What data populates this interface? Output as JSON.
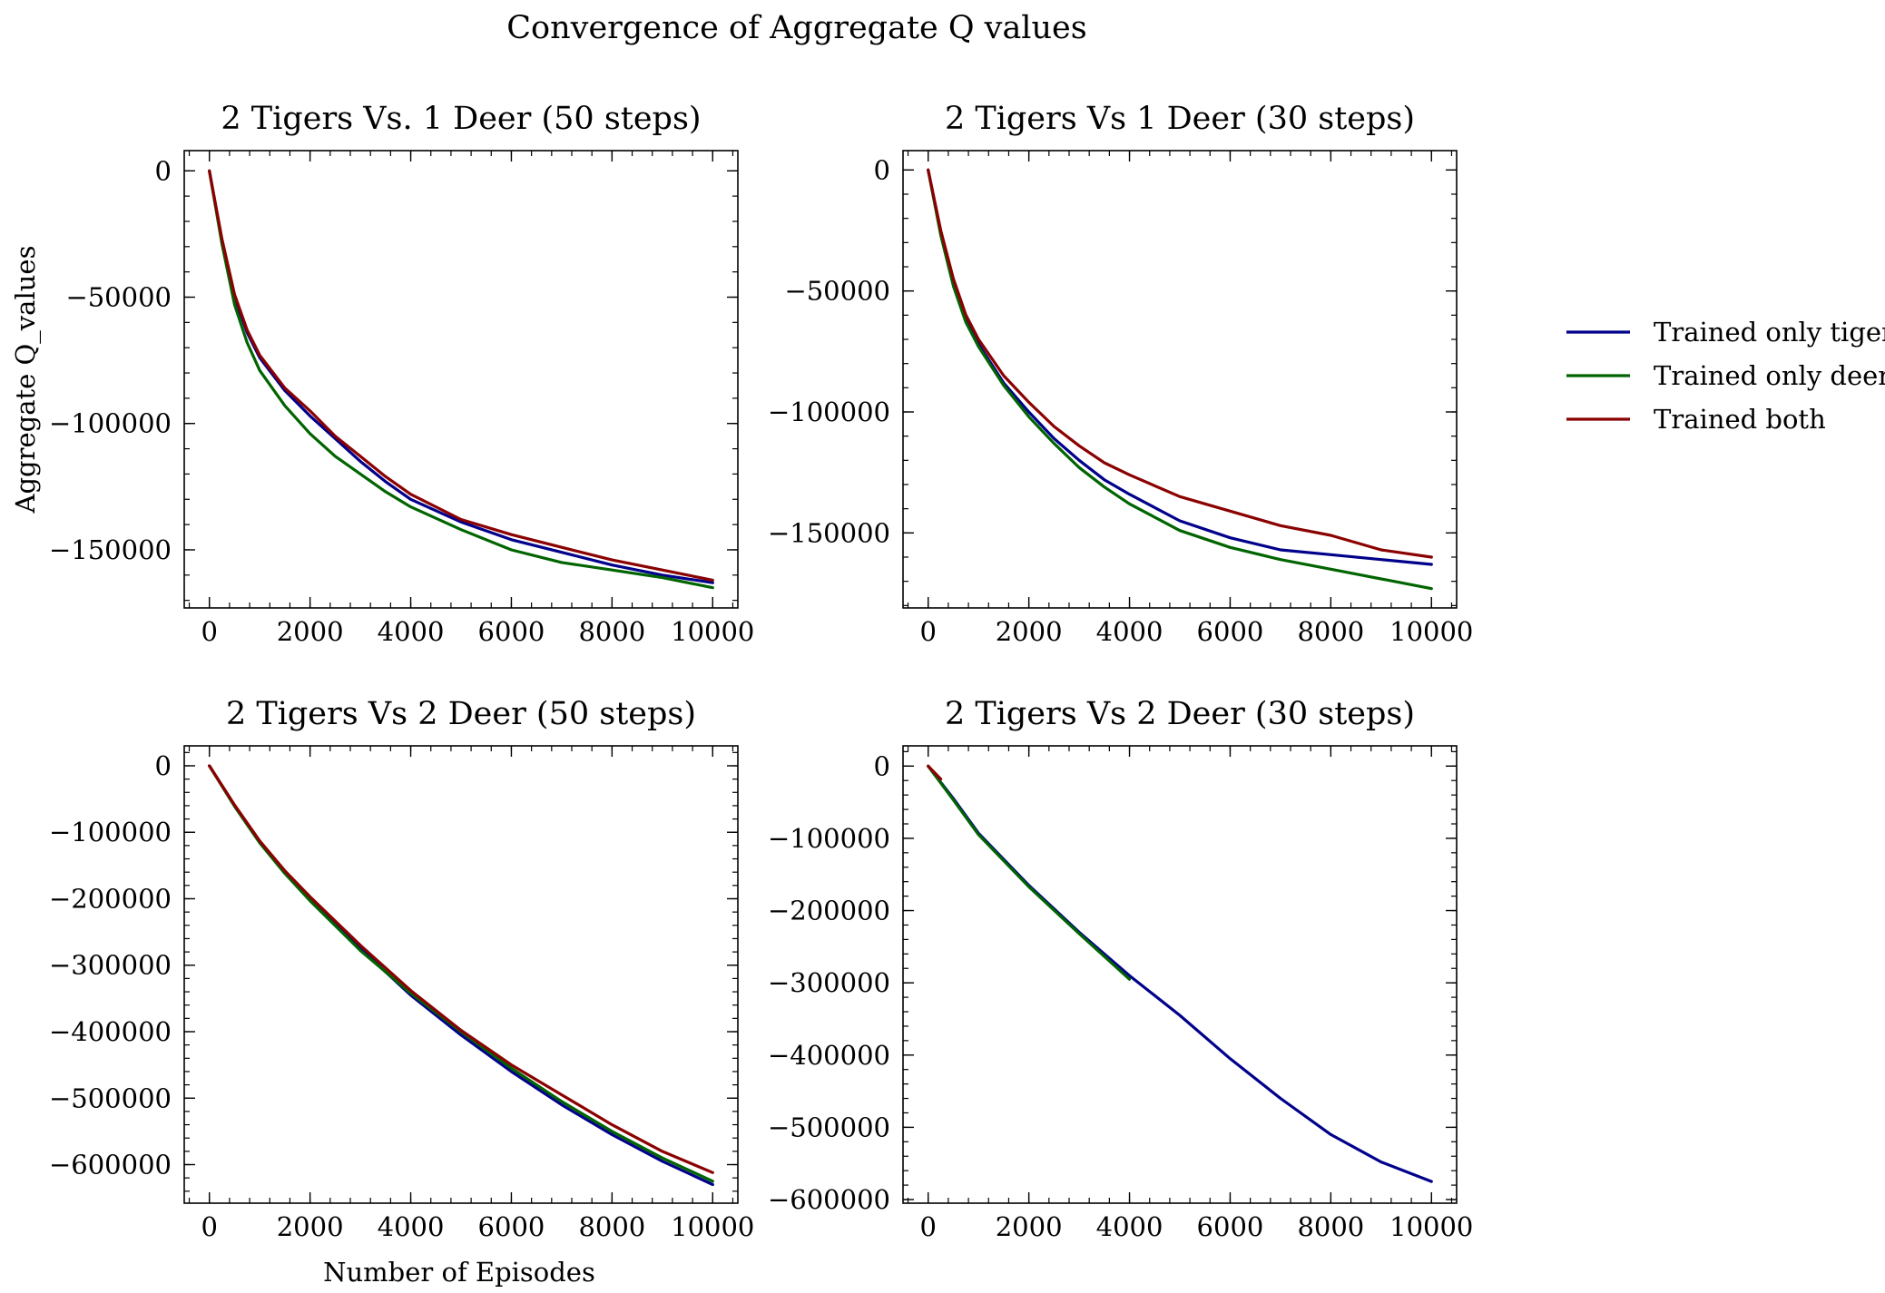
{
  "figure": {
    "title": "Convergence of Aggregate Q values"
  },
  "legend": {
    "placement": "right",
    "entries": [
      {
        "label": "Trained only tiger",
        "color": "#00008b"
      },
      {
        "label": "Trained only deer",
        "color": "#006400"
      },
      {
        "label": "Trained both",
        "color": "#8b0000"
      }
    ]
  },
  "chart_data": [
    {
      "type": "line",
      "title": "2 Tigers Vs. 1 Deer (50 steps)",
      "xlabel": "",
      "ylabel": "Aggregate Q_values",
      "xlim": [
        -500,
        10500
      ],
      "ylim": [
        -173000,
        8000
      ],
      "xticks": [
        0,
        2000,
        4000,
        6000,
        8000,
        10000
      ],
      "xtick_labels": [
        "0",
        "2000",
        "4000",
        "6000",
        "8000",
        "10000"
      ],
      "yticks": [
        0,
        -50000,
        -100000,
        -150000
      ],
      "ytick_labels": [
        "0",
        "−50000",
        "−100000",
        "−150000"
      ],
      "x": [
        0,
        250,
        500,
        750,
        1000,
        1500,
        2000,
        2500,
        3000,
        3500,
        4000,
        5000,
        6000,
        7000,
        8000,
        9000,
        10000
      ],
      "series": [
        {
          "name": "Trained only tiger",
          "color": "#00008b",
          "values": [
            0,
            -28000,
            -50000,
            -64000,
            -74000,
            -87000,
            -97000,
            -106000,
            -115000,
            -123000,
            -130000,
            -139000,
            -146000,
            -151000,
            -156000,
            -160000,
            -163000
          ]
        },
        {
          "name": "Trained only deer",
          "color": "#006400",
          "values": [
            0,
            -29000,
            -53000,
            -68000,
            -79000,
            -93000,
            -104000,
            -113000,
            -120000,
            -127000,
            -133000,
            -142000,
            -150000,
            -155000,
            -158000,
            -161000,
            -165000
          ]
        },
        {
          "name": "Trained both",
          "color": "#8b0000",
          "values": [
            0,
            -27000,
            -49000,
            -63000,
            -73000,
            -86000,
            -95000,
            -105000,
            -113000,
            -121000,
            -128000,
            -138000,
            -144000,
            -149000,
            -154000,
            -158000,
            -162000
          ]
        }
      ]
    },
    {
      "type": "line",
      "title": "2 Tigers Vs 1 Deer (30 steps)",
      "xlabel": "",
      "ylabel": "",
      "xlim": [
        -500,
        10500
      ],
      "ylim": [
        -181000,
        8000
      ],
      "xticks": [
        0,
        2000,
        4000,
        6000,
        8000,
        10000
      ],
      "xtick_labels": [
        "0",
        "2000",
        "4000",
        "6000",
        "8000",
        "10000"
      ],
      "yticks": [
        0,
        -50000,
        -100000,
        -150000
      ],
      "ytick_labels": [
        "0",
        "−50000",
        "−100000",
        "−150000"
      ],
      "x": [
        0,
        250,
        500,
        750,
        1000,
        1500,
        2000,
        2500,
        3000,
        3500,
        4000,
        5000,
        6000,
        7000,
        8000,
        9000,
        10000
      ],
      "series": [
        {
          "name": "Trained only tiger",
          "color": "#00008b",
          "values": [
            0,
            -26000,
            -47000,
            -62000,
            -72000,
            -88000,
            -100000,
            -111000,
            -120000,
            -128000,
            -134000,
            -145000,
            -152000,
            -157000,
            -159000,
            -161000,
            -163000
          ]
        },
        {
          "name": "Trained only deer",
          "color": "#006400",
          "values": [
            0,
            -27000,
            -48000,
            -63000,
            -73000,
            -89000,
            -102000,
            -113000,
            -123000,
            -131000,
            -138000,
            -149000,
            -156000,
            -161000,
            -165000,
            -169000,
            -173000
          ]
        },
        {
          "name": "Trained both",
          "color": "#8b0000",
          "values": [
            0,
            -25000,
            -45000,
            -60000,
            -70000,
            -85000,
            -96000,
            -106000,
            -114000,
            -121000,
            -126000,
            -135000,
            -141000,
            -147000,
            -151000,
            -157000,
            -160000
          ]
        }
      ]
    },
    {
      "type": "line",
      "title": "2 Tigers Vs 2 Deer (50 steps)",
      "xlabel": "Number of Episodes",
      "ylabel": "",
      "xlim": [
        -500,
        10500
      ],
      "ylim": [
        -658000,
        30000
      ],
      "xticks": [
        0,
        2000,
        4000,
        6000,
        8000,
        10000
      ],
      "xtick_labels": [
        "0",
        "2000",
        "4000",
        "6000",
        "8000",
        "10000"
      ],
      "yticks": [
        0,
        -100000,
        -200000,
        -300000,
        -400000,
        -500000,
        -600000
      ],
      "ytick_labels": [
        "0",
        "−100000",
        "−200000",
        "−300000",
        "−400000",
        "−500000",
        "−600000"
      ],
      "x": [
        0,
        500,
        1000,
        1500,
        2000,
        3000,
        4000,
        5000,
        6000,
        7000,
        8000,
        9000,
        10000
      ],
      "series": [
        {
          "name": "Trained only tiger",
          "color": "#00008b",
          "values": [
            0,
            -60000,
            -115000,
            -160000,
            -200000,
            -275000,
            -345000,
            -405000,
            -460000,
            -510000,
            -555000,
            -595000,
            -630000
          ]
        },
        {
          "name": "Trained only deer",
          "color": "#006400",
          "values": [
            0,
            -61000,
            -116000,
            -162000,
            -203000,
            -278000,
            -342000,
            -400000,
            -455000,
            -505000,
            -550000,
            -590000,
            -625000
          ]
        },
        {
          "name": "Trained both",
          "color": "#8b0000",
          "values": [
            0,
            -59000,
            -113000,
            -158000,
            -197000,
            -270000,
            -338000,
            -398000,
            -450000,
            -495000,
            -540000,
            -580000,
            -612000
          ]
        }
      ]
    },
    {
      "type": "line",
      "title": "2 Tigers Vs 2 Deer (30 steps)",
      "xlabel": "",
      "ylabel": "",
      "xlim": [
        -500,
        10500
      ],
      "ylim": [
        -605000,
        28000
      ],
      "xticks": [
        0,
        2000,
        4000,
        6000,
        8000,
        10000
      ],
      "xtick_labels": [
        "0",
        "2000",
        "4000",
        "6000",
        "8000",
        "10000"
      ],
      "yticks": [
        0,
        -100000,
        -200000,
        -300000,
        -400000,
        -500000,
        -600000
      ],
      "ytick_labels": [
        "0",
        "−100000",
        "−200000",
        "−300000",
        "−400000",
        "−500000",
        "−600000"
      ],
      "series": [
        {
          "name": "Trained only tiger",
          "color": "#00008b",
          "x": [
            0,
            500,
            1000,
            2000,
            3000,
            4000,
            5000,
            6000,
            7000,
            8000,
            9000,
            10000
          ],
          "values": [
            0,
            -45000,
            -93000,
            -165000,
            -230000,
            -290000,
            -345000,
            -405000,
            -460000,
            -510000,
            -548000,
            -575000
          ]
        },
        {
          "name": "Trained only deer",
          "color": "#006400",
          "x": [
            0,
            500,
            1000,
            2000,
            3000,
            4000
          ],
          "values": [
            0,
            -47000,
            -95000,
            -167000,
            -232000,
            -295000
          ]
        },
        {
          "name": "Trained both",
          "color": "#8b0000",
          "x": [
            0,
            250
          ],
          "values": [
            0,
            -18000
          ]
        }
      ]
    }
  ]
}
